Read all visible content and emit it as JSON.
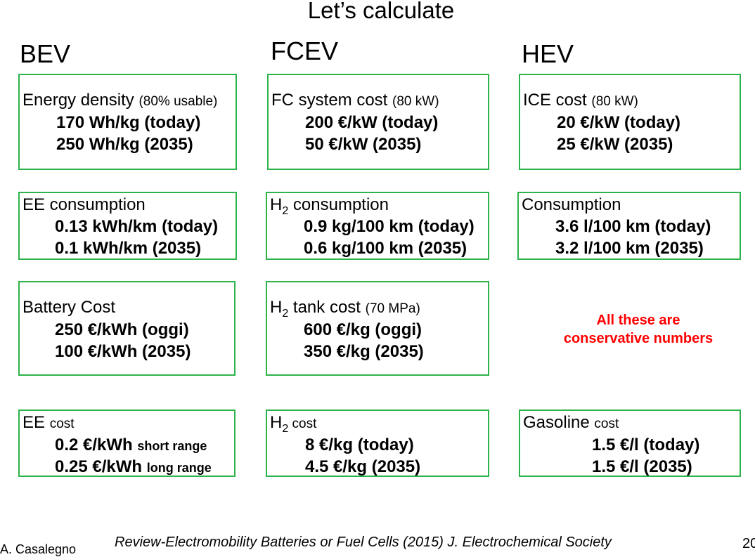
{
  "title": "Let’s calculate",
  "columns": {
    "bev": {
      "heading": "BEV",
      "boxes": [
        {
          "label": "Energy density",
          "sub": "(80% usable)",
          "l1": "170 Wh/kg (today)",
          "l2": "250 Wh/kg (2035)"
        },
        {
          "label": "EE consumption",
          "sub": "",
          "l1": "0.13 kWh/km (today)",
          "l2": "0.1 kWh/km (2035)"
        },
        {
          "label": "Battery Cost",
          "sub": "",
          "l1": "250 €/kWh (oggi)",
          "l2": "100 €/kWh (2035)"
        },
        {
          "label": "EE",
          "sub": "cost",
          "l1": "0.2 €/kWh",
          "l1s": "short range",
          "l2": "0.25 €/kWh",
          "l2s": "long range"
        }
      ]
    },
    "fcev": {
      "heading": "FCEV",
      "boxes": [
        {
          "label": "FC system cost",
          "sub": "(80 kW)",
          "l1": "200 €/kW (today)",
          "l2": "50 €/kW (2035)"
        },
        {
          "label": "H",
          "sub2": "2",
          "label2": " consumption",
          "l1": "0.9 kg/100 km (today)",
          "l2": "0.6 kg/100 km (2035)"
        },
        {
          "label": "H",
          "sub2": "2",
          "label2": " tank cost",
          "sub": "(70 MPa)",
          "l1": "600 €/kg (oggi)",
          "l2": "350 €/kg (2035)"
        },
        {
          "label": "H",
          "sub2": "2",
          "sub": " cost",
          "l1": "8 €/kg (today)",
          "l2": "4.5 €/kg (2035)"
        }
      ]
    },
    "hev": {
      "heading": "HEV",
      "boxes": [
        {
          "label": "ICE cost",
          "sub": "(80 kW)",
          "l1": "20 €/kW (today)",
          "l2": "25 €/kW (2035)"
        },
        {
          "label": "Consumption",
          "l1": "3.6 l/100 km (today)",
          "l2": "3.2 l/100 km (2035)"
        },
        {
          "label": "Gasoline",
          "sub": "cost",
          "l1": "1.5 €/l (today)",
          "l2": "1.5 €/l (2035)"
        }
      ],
      "note1": "All these are",
      "note2": "conservative numbers"
    }
  },
  "footer": {
    "author": "A. Casalegno",
    "reference": "Review-Electromobility Batteries or Fuel Cells (2015) J. Electrochemical Society",
    "page": "20"
  },
  "colors": {
    "border": "#2db34a",
    "note": "#ff0000"
  }
}
